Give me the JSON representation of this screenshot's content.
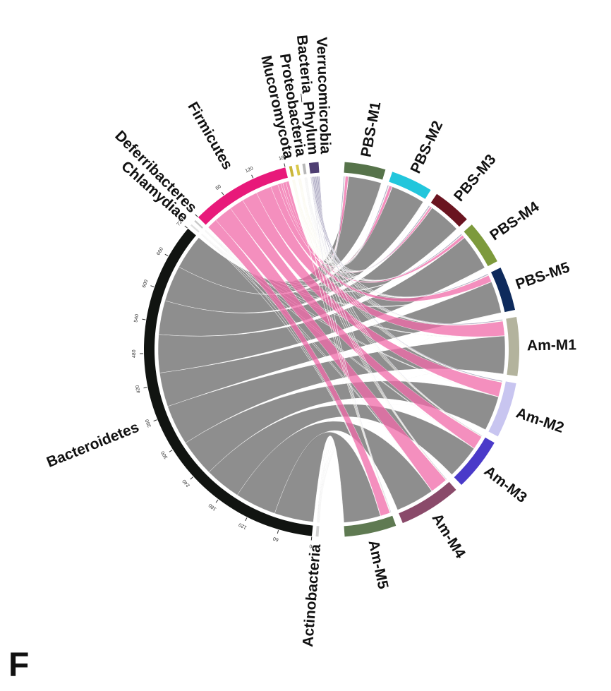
{
  "panel_label": "F",
  "chart_data": {
    "type": "chord",
    "sources": [
      "Actinobacteria",
      "Bacteroidetes",
      "Chlamydiae",
      "Deferribacteres",
      "Firmicutes",
      "Mucoromycota",
      "Proteobacteria",
      "Bacteria_Phylum",
      "Verrucomicrobia"
    ],
    "source_colors": [
      "#d0d0d0",
      "#111411",
      "#e0e0e0",
      "#c8c8c8",
      "#e8197a",
      "#c9b53a",
      "#d9c84a",
      "#b8b8b8",
      "#4e3e72"
    ],
    "ribbon_colors": [
      "#9a9a9a",
      "#7a7a7a",
      "#9a9a9a",
      "#9a9a9a",
      "#f06aa8",
      "#d8cc70",
      "#d8cc70",
      "#9a9a9a",
      "#8a84a8"
    ],
    "targets": [
      "PBS-M1",
      "PBS-M2",
      "PBS-M3",
      "PBS-M4",
      "PBS-M5",
      "Am-M1",
      "Am-M2",
      "Am-M3",
      "Am-M4",
      "Am-M5"
    ],
    "target_colors": [
      "#56734a",
      "#22c6dc",
      "#6a1420",
      "#7d9a3c",
      "#0e2a5c",
      "#b3b39d",
      "#c8c5f0",
      "#4a3ac9",
      "#8a4a6a",
      "#5f7a52"
    ],
    "matrix": [
      [
        0.5,
        0.5,
        0.5,
        0.5,
        0.5,
        0.5,
        0.5,
        0.5,
        0.5,
        0.5
      ],
      [
        68,
        70,
        66,
        74,
        66,
        78,
        72,
        70,
        80,
        76
      ],
      [
        0.3,
        0.3,
        0.3,
        0.3,
        0.3,
        0.3,
        0.3,
        0.3,
        0.3,
        0.3
      ],
      [
        0.3,
        0.3,
        0.3,
        0.3,
        0.3,
        0.3,
        0.3,
        0.3,
        0.3,
        0.3
      ],
      [
        6,
        6,
        4,
        6,
        14,
        30,
        30,
        28,
        36,
        20
      ],
      [
        0.5,
        0.5,
        0.5,
        0.5,
        0.5,
        0.5,
        0.5,
        0.5,
        0.5,
        0.5
      ],
      [
        0.5,
        0.5,
        0.5,
        0.5,
        0.5,
        0.5,
        0.5,
        0.5,
        0.5,
        0.5
      ],
      [
        0.5,
        0.5,
        0.5,
        0.5,
        0.5,
        0.5,
        0.5,
        0.5,
        0.5,
        0.5
      ],
      [
        2,
        2,
        2,
        2,
        2,
        2,
        2,
        1,
        1,
        1
      ]
    ],
    "axis_ticks": [
      [],
      [
        0,
        60,
        120,
        180,
        240,
        300,
        360,
        420,
        480,
        540,
        600,
        660,
        720
      ],
      [],
      [],
      [
        0,
        60,
        120,
        180
      ],
      [],
      [],
      [],
      []
    ]
  }
}
